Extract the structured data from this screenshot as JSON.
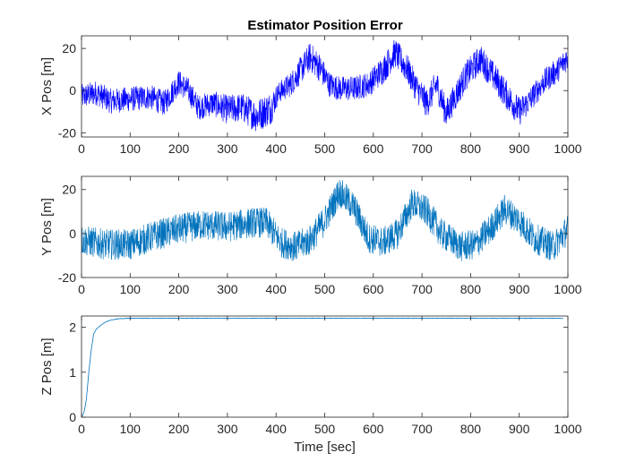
{
  "figure": {
    "title": "Estimator Position Error"
  },
  "chart_data": [
    {
      "type": "line",
      "title": "Estimator Position Error",
      "xlabel": "",
      "ylabel": "X Pos [m]",
      "xlim": [
        0,
        1000
      ],
      "ylim": [
        -22,
        26
      ],
      "xticks": [
        0,
        100,
        200,
        300,
        400,
        500,
        600,
        700,
        800,
        900,
        1000
      ],
      "yticks": [
        -20,
        0,
        20
      ],
      "grid": false,
      "color": "#0000ff",
      "series": [
        {
          "x": [
            0,
            30,
            60,
            100,
            140,
            170,
            200,
            220,
            240,
            270,
            300,
            330,
            360,
            390,
            405,
            430,
            470,
            490,
            510,
            530,
            560,
            590,
            620,
            645,
            670,
            690,
            710,
            730,
            750,
            770,
            790,
            820,
            850,
            880,
            900,
            920,
            950,
            980,
            1000
          ],
          "y": [
            -3,
            -1,
            -5,
            -4,
            -3,
            -6,
            4,
            0,
            -8,
            -6,
            -9,
            -8,
            -12,
            -8,
            -1,
            3,
            16,
            11,
            3,
            1,
            1,
            3,
            10,
            18,
            10,
            1,
            -6,
            3,
            -11,
            -2,
            7,
            15,
            6,
            -4,
            -10,
            -5,
            4,
            10,
            16
          ],
          "amplitude": [
            6,
            6,
            6,
            6,
            6,
            6,
            6,
            6,
            6,
            6,
            7,
            7,
            8,
            8,
            5,
            6,
            7,
            7,
            6,
            6,
            6,
            6,
            7,
            7,
            7,
            7,
            7,
            7,
            7,
            7,
            7,
            7,
            7,
            7,
            7,
            6,
            6,
            6,
            6
          ]
        }
      ]
    },
    {
      "type": "line",
      "title": "",
      "xlabel": "",
      "ylabel": "Y Pos [m]",
      "xlim": [
        0,
        1000
      ],
      "ylim": [
        -20,
        26
      ],
      "xticks": [
        0,
        100,
        200,
        300,
        400,
        500,
        600,
        700,
        800,
        900,
        1000
      ],
      "yticks": [
        -20,
        0,
        20
      ],
      "grid": false,
      "color": "#0072bd",
      "series": [
        {
          "x": [
            0,
            50,
            100,
            150,
            200,
            250,
            300,
            350,
            380,
            410,
            440,
            470,
            500,
            530,
            560,
            590,
            620,
            650,
            680,
            710,
            740,
            780,
            810,
            840,
            870,
            900,
            930,
            970,
            1000
          ],
          "y": [
            -3,
            -5,
            -5,
            -1,
            2,
            4,
            3,
            5,
            5,
            -4,
            -6,
            -3,
            6,
            19,
            12,
            -2,
            -4,
            0,
            14,
            10,
            0,
            -6,
            -5,
            2,
            11,
            6,
            -2,
            -6,
            2
          ],
          "amplitude": [
            7,
            7,
            7,
            7,
            7,
            7,
            7,
            7,
            7,
            7,
            7,
            7,
            7,
            7,
            7,
            7,
            7,
            7,
            7,
            7,
            7,
            7,
            7,
            7,
            7,
            7,
            7,
            7,
            7
          ]
        }
      ]
    },
    {
      "type": "line",
      "title": "",
      "xlabel": "Time [sec]",
      "ylabel": "Z Pos [m]",
      "xlim": [
        0,
        1000
      ],
      "ylim": [
        0,
        2.25
      ],
      "xticks": [
        0,
        100,
        200,
        300,
        400,
        500,
        600,
        700,
        800,
        900,
        1000
      ],
      "yticks": [
        0,
        1,
        2
      ],
      "grid": false,
      "color": "#0072bd",
      "series": [
        {
          "x": [
            0,
            3,
            6,
            10,
            15,
            20,
            25,
            30,
            40,
            50,
            60,
            70,
            80,
            100,
            200,
            300,
            400,
            500,
            600,
            700,
            800,
            900,
            990
          ],
          "y": [
            0,
            0.05,
            0.15,
            0.4,
            1.0,
            1.5,
            1.85,
            1.95,
            2.05,
            2.12,
            2.16,
            2.18,
            2.19,
            2.2,
            2.2,
            2.2,
            2.2,
            2.2,
            2.2,
            2.2,
            2.2,
            2.2,
            2.2
          ]
        }
      ]
    }
  ]
}
